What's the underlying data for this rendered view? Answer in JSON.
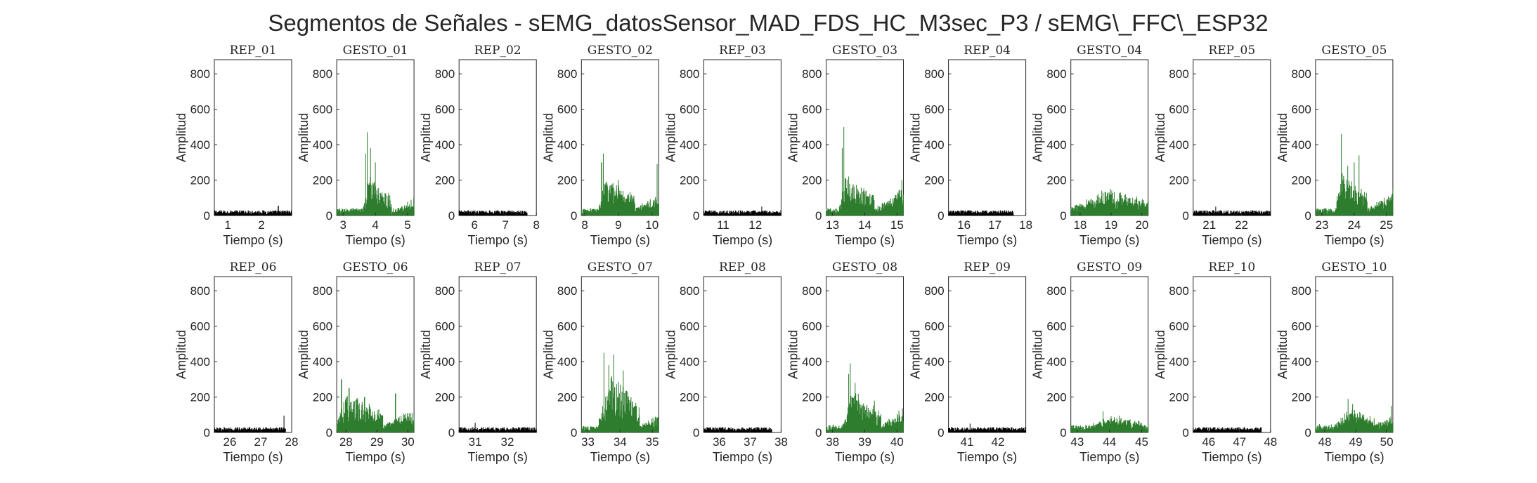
{
  "figure_title": "Segmentos de Señales - sEMG_datosSensor_MAD_FDS_HC_M3sec_P3 / sEMG\\_FFC\\_ESP32",
  "colors": {
    "rep": "#000000",
    "gesto": "#2e7d2e",
    "axis": "#262626"
  },
  "chart_data": [
    {
      "type": "area",
      "title": "REP_01",
      "xlabel": "Tiempo (s)",
      "ylabel": "Amplitud",
      "xlim": [
        0.6,
        2.9
      ],
      "ylim": [
        0,
        880
      ],
      "xticks": [
        1,
        2
      ],
      "yticks": [
        0,
        200,
        400,
        600,
        800
      ],
      "segment": [
        0.6,
        2.9
      ],
      "kind": "rep",
      "baseline": 25,
      "bursts": [],
      "peaks": [
        [
          2.5,
          55
        ]
      ]
    },
    {
      "type": "area",
      "title": "GESTO_01",
      "xlabel": "Tiempo (s)",
      "ylabel": "Amplitud",
      "xlim": [
        2.8,
        5.2
      ],
      "ylim": [
        0,
        880
      ],
      "xticks": [
        3,
        4,
        5
      ],
      "yticks": [
        0,
        200,
        400,
        600,
        800
      ],
      "segment": [
        2.8,
        5.2
      ],
      "kind": "gesto",
      "baseline": 35,
      "bursts": [
        [
          3.6,
          3.8,
          4.5,
          150
        ],
        [
          4.6,
          5.2,
          5.2,
          50
        ]
      ],
      "peaks": [
        [
          3.75,
          470
        ],
        [
          3.7,
          350
        ],
        [
          4.0,
          300
        ],
        [
          3.85,
          380
        ]
      ]
    },
    {
      "type": "area",
      "title": "REP_02",
      "xlabel": "Tiempo (s)",
      "ylabel": "Amplitud",
      "xlim": [
        5.5,
        8.0
      ],
      "ylim": [
        0,
        880
      ],
      "xticks": [
        6,
        7,
        8
      ],
      "yticks": [
        0,
        200,
        400,
        600,
        800
      ],
      "segment": [
        5.5,
        7.7
      ],
      "kind": "rep",
      "baseline": 25,
      "bursts": [],
      "peaks": []
    },
    {
      "type": "area",
      "title": "GESTO_02",
      "xlabel": "Tiempo (s)",
      "ylabel": "Amplitud",
      "xlim": [
        7.9,
        10.2
      ],
      "ylim": [
        0,
        880
      ],
      "xticks": [
        8,
        9,
        10
      ],
      "yticks": [
        0,
        200,
        400,
        600,
        800
      ],
      "segment": [
        7.9,
        10.2
      ],
      "kind": "gesto",
      "baseline": 35,
      "bursts": [
        [
          8.4,
          8.6,
          9.5,
          160
        ],
        [
          9.5,
          10.2,
          10.2,
          80
        ]
      ],
      "peaks": [
        [
          8.55,
          350
        ],
        [
          8.5,
          300
        ],
        [
          10.15,
          290
        ],
        [
          9.0,
          200
        ]
      ]
    },
    {
      "type": "area",
      "title": "REP_03",
      "xlabel": "Tiempo (s)",
      "ylabel": "Amplitud",
      "xlim": [
        10.4,
        12.8
      ],
      "ylim": [
        0,
        880
      ],
      "xticks": [
        11,
        12
      ],
      "yticks": [
        0,
        200,
        400,
        600,
        800
      ],
      "segment": [
        10.4,
        12.8
      ],
      "kind": "rep",
      "baseline": 25,
      "bursts": [],
      "peaks": [
        [
          12.2,
          50
        ]
      ]
    },
    {
      "type": "area",
      "title": "GESTO_03",
      "xlabel": "Tiempo (s)",
      "ylabel": "Amplitud",
      "xlim": [
        12.8,
        15.2
      ],
      "ylim": [
        0,
        880
      ],
      "xticks": [
        13,
        14,
        15
      ],
      "yticks": [
        0,
        200,
        400,
        600,
        800
      ],
      "segment": [
        12.8,
        15.2
      ],
      "kind": "gesto",
      "baseline": 35,
      "bursts": [
        [
          13.2,
          13.4,
          14.3,
          150
        ],
        [
          14.3,
          15.2,
          15.2,
          100
        ]
      ],
      "peaks": [
        [
          13.35,
          500
        ],
        [
          13.3,
          380
        ],
        [
          15.15,
          200
        ],
        [
          13.5,
          220
        ]
      ]
    },
    {
      "type": "area",
      "title": "REP_04",
      "xlabel": "Tiempo (s)",
      "ylabel": "Amplitud",
      "xlim": [
        15.5,
        18.0
      ],
      "ylim": [
        0,
        880
      ],
      "xticks": [
        16,
        17,
        18
      ],
      "yticks": [
        0,
        200,
        400,
        600,
        800
      ],
      "segment": [
        15.5,
        17.6
      ],
      "kind": "rep",
      "baseline": 25,
      "bursts": [],
      "peaks": []
    },
    {
      "type": "area",
      "title": "GESTO_04",
      "xlabel": "Tiempo (s)",
      "ylabel": "Amplitud",
      "xlim": [
        17.7,
        20.2
      ],
      "ylim": [
        0,
        880
      ],
      "xticks": [
        18,
        19,
        20
      ],
      "yticks": [
        0,
        200,
        400,
        600,
        800
      ],
      "segment": [
        17.7,
        20.2
      ],
      "kind": "gesto",
      "baseline": 40,
      "bursts": [
        [
          17.7,
          19.0,
          20.2,
          90
        ]
      ],
      "peaks": [
        [
          18.7,
          140
        ],
        [
          19.3,
          130
        ]
      ]
    },
    {
      "type": "area",
      "title": "REP_05",
      "xlabel": "Tiempo (s)",
      "ylabel": "Amplitud",
      "xlim": [
        20.5,
        22.9
      ],
      "ylim": [
        0,
        880
      ],
      "xticks": [
        21,
        22
      ],
      "yticks": [
        0,
        200,
        400,
        600,
        800
      ],
      "segment": [
        20.5,
        22.9
      ],
      "kind": "rep",
      "baseline": 25,
      "bursts": [],
      "peaks": [
        [
          21.2,
          50
        ]
      ]
    },
    {
      "type": "area",
      "title": "GESTO_05",
      "xlabel": "Tiempo (s)",
      "ylabel": "Amplitud",
      "xlim": [
        22.8,
        25.2
      ],
      "ylim": [
        0,
        880
      ],
      "xticks": [
        23,
        24,
        25
      ],
      "yticks": [
        0,
        200,
        400,
        600,
        800
      ],
      "segment": [
        22.8,
        25.2
      ],
      "kind": "gesto",
      "baseline": 35,
      "bursts": [
        [
          23.4,
          23.6,
          24.4,
          170
        ],
        [
          24.4,
          25.2,
          25.2,
          90
        ]
      ],
      "peaks": [
        [
          23.6,
          460
        ],
        [
          24.15,
          340
        ],
        [
          24.0,
          300
        ],
        [
          23.8,
          280
        ]
      ]
    },
    {
      "type": "area",
      "title": "REP_06",
      "xlabel": "Tiempo (s)",
      "ylabel": "Amplitud",
      "xlim": [
        25.5,
        28.0
      ],
      "ylim": [
        0,
        880
      ],
      "xticks": [
        26,
        27,
        28
      ],
      "yticks": [
        0,
        200,
        400,
        600,
        800
      ],
      "segment": [
        25.5,
        27.8
      ],
      "kind": "rep",
      "baseline": 25,
      "bursts": [],
      "peaks": [
        [
          27.75,
          95
        ]
      ]
    },
    {
      "type": "area",
      "title": "GESTO_06",
      "xlabel": "Tiempo (s)",
      "ylabel": "Amplitud",
      "xlim": [
        27.7,
        30.2
      ],
      "ylim": [
        0,
        880
      ],
      "xticks": [
        28,
        29,
        30
      ],
      "yticks": [
        0,
        200,
        400,
        600,
        800
      ],
      "segment": [
        27.7,
        30.2
      ],
      "kind": "gesto",
      "baseline": 40,
      "bursts": [
        [
          27.7,
          28.0,
          29.2,
          150
        ],
        [
          29.2,
          30.2,
          30.2,
          80
        ]
      ],
      "peaks": [
        [
          27.85,
          300
        ],
        [
          28.1,
          250
        ],
        [
          29.6,
          220
        ],
        [
          28.6,
          200
        ]
      ]
    },
    {
      "type": "area",
      "title": "REP_07",
      "xlabel": "Tiempo (s)",
      "ylabel": "Amplitud",
      "xlim": [
        30.5,
        32.9
      ],
      "ylim": [
        0,
        880
      ],
      "xticks": [
        31,
        32
      ],
      "yticks": [
        0,
        200,
        400,
        600,
        800
      ],
      "segment": [
        30.5,
        32.9
      ],
      "kind": "rep",
      "baseline": 25,
      "bursts": [],
      "peaks": [
        [
          31.0,
          55
        ]
      ]
    },
    {
      "type": "area",
      "title": "GESTO_07",
      "xlabel": "Tiempo (s)",
      "ylabel": "Amplitud",
      "xlim": [
        32.8,
        35.2
      ],
      "ylim": [
        0,
        880
      ],
      "xticks": [
        33,
        34,
        35
      ],
      "yticks": [
        0,
        200,
        400,
        600,
        800
      ],
      "segment": [
        32.8,
        35.2
      ],
      "kind": "gesto",
      "baseline": 30,
      "bursts": [
        [
          33.3,
          33.7,
          34.6,
          250
        ],
        [
          34.6,
          35.2,
          35.2,
          60
        ]
      ],
      "peaks": [
        [
          33.5,
          450
        ],
        [
          33.8,
          440
        ],
        [
          33.65,
          380
        ],
        [
          34.1,
          350
        ]
      ]
    },
    {
      "type": "area",
      "title": "REP_08",
      "xlabel": "Tiempo (s)",
      "ylabel": "Amplitud",
      "xlim": [
        35.5,
        38.0
      ],
      "ylim": [
        0,
        880
      ],
      "xticks": [
        36,
        37,
        38
      ],
      "yticks": [
        0,
        200,
        400,
        600,
        800
      ],
      "segment": [
        35.5,
        37.7
      ],
      "kind": "rep",
      "baseline": 25,
      "bursts": [],
      "peaks": []
    },
    {
      "type": "area",
      "title": "GESTO_08",
      "xlabel": "Tiempo (s)",
      "ylabel": "Amplitud",
      "xlim": [
        37.8,
        40.2
      ],
      "ylim": [
        0,
        880
      ],
      "xticks": [
        38,
        39,
        40
      ],
      "yticks": [
        0,
        200,
        400,
        600,
        800
      ],
      "segment": [
        37.8,
        40.2
      ],
      "kind": "gesto",
      "baseline": 35,
      "bursts": [
        [
          38.3,
          38.6,
          39.5,
          170
        ],
        [
          39.5,
          40.2,
          40.2,
          90
        ]
      ],
      "peaks": [
        [
          38.55,
          390
        ],
        [
          38.5,
          330
        ],
        [
          38.7,
          280
        ],
        [
          39.3,
          180
        ]
      ]
    },
    {
      "type": "area",
      "title": "REP_09",
      "xlabel": "Tiempo (s)",
      "ylabel": "Amplitud",
      "xlim": [
        40.4,
        42.9
      ],
      "ylim": [
        0,
        880
      ],
      "xticks": [
        41,
        42
      ],
      "yticks": [
        0,
        200,
        400,
        600,
        800
      ],
      "segment": [
        40.4,
        42.9
      ],
      "kind": "rep",
      "baseline": 25,
      "bursts": [],
      "peaks": [
        [
          41.1,
          50
        ]
      ]
    },
    {
      "type": "area",
      "title": "GESTO_09",
      "xlabel": "Tiempo (s)",
      "ylabel": "Amplitud",
      "xlim": [
        42.8,
        45.2
      ],
      "ylim": [
        0,
        880
      ],
      "xticks": [
        43,
        44,
        45
      ],
      "yticks": [
        0,
        200,
        400,
        600,
        800
      ],
      "segment": [
        42.8,
        45.2
      ],
      "kind": "gesto",
      "baseline": 35,
      "bursts": [
        [
          43.3,
          43.9,
          45.0,
          50
        ]
      ],
      "peaks": [
        [
          43.8,
          120
        ],
        [
          44.3,
          95
        ]
      ]
    },
    {
      "type": "area",
      "title": "REP_10",
      "xlabel": "Tiempo (s)",
      "ylabel": "Amplitud",
      "xlim": [
        45.5,
        48.0
      ],
      "ylim": [
        0,
        880
      ],
      "xticks": [
        46,
        47,
        48
      ],
      "yticks": [
        0,
        200,
        400,
        600,
        800
      ],
      "segment": [
        45.5,
        47.7
      ],
      "kind": "rep",
      "baseline": 25,
      "bursts": [],
      "peaks": []
    },
    {
      "type": "area",
      "title": "GESTO_10",
      "xlabel": "Tiempo (s)",
      "ylabel": "Amplitud",
      "xlim": [
        47.7,
        50.2
      ],
      "ylim": [
        0,
        880
      ],
      "xticks": [
        48,
        49,
        50
      ],
      "yticks": [
        0,
        200,
        400,
        600,
        800
      ],
      "segment": [
        47.7,
        50.2
      ],
      "kind": "gesto",
      "baseline": 40,
      "bursts": [
        [
          48.3,
          48.8,
          49.6,
          80
        ],
        [
          49.6,
          50.2,
          50.2,
          40
        ]
      ],
      "peaks": [
        [
          48.75,
          190
        ],
        [
          48.9,
          160
        ],
        [
          50.15,
          150
        ]
      ]
    }
  ]
}
